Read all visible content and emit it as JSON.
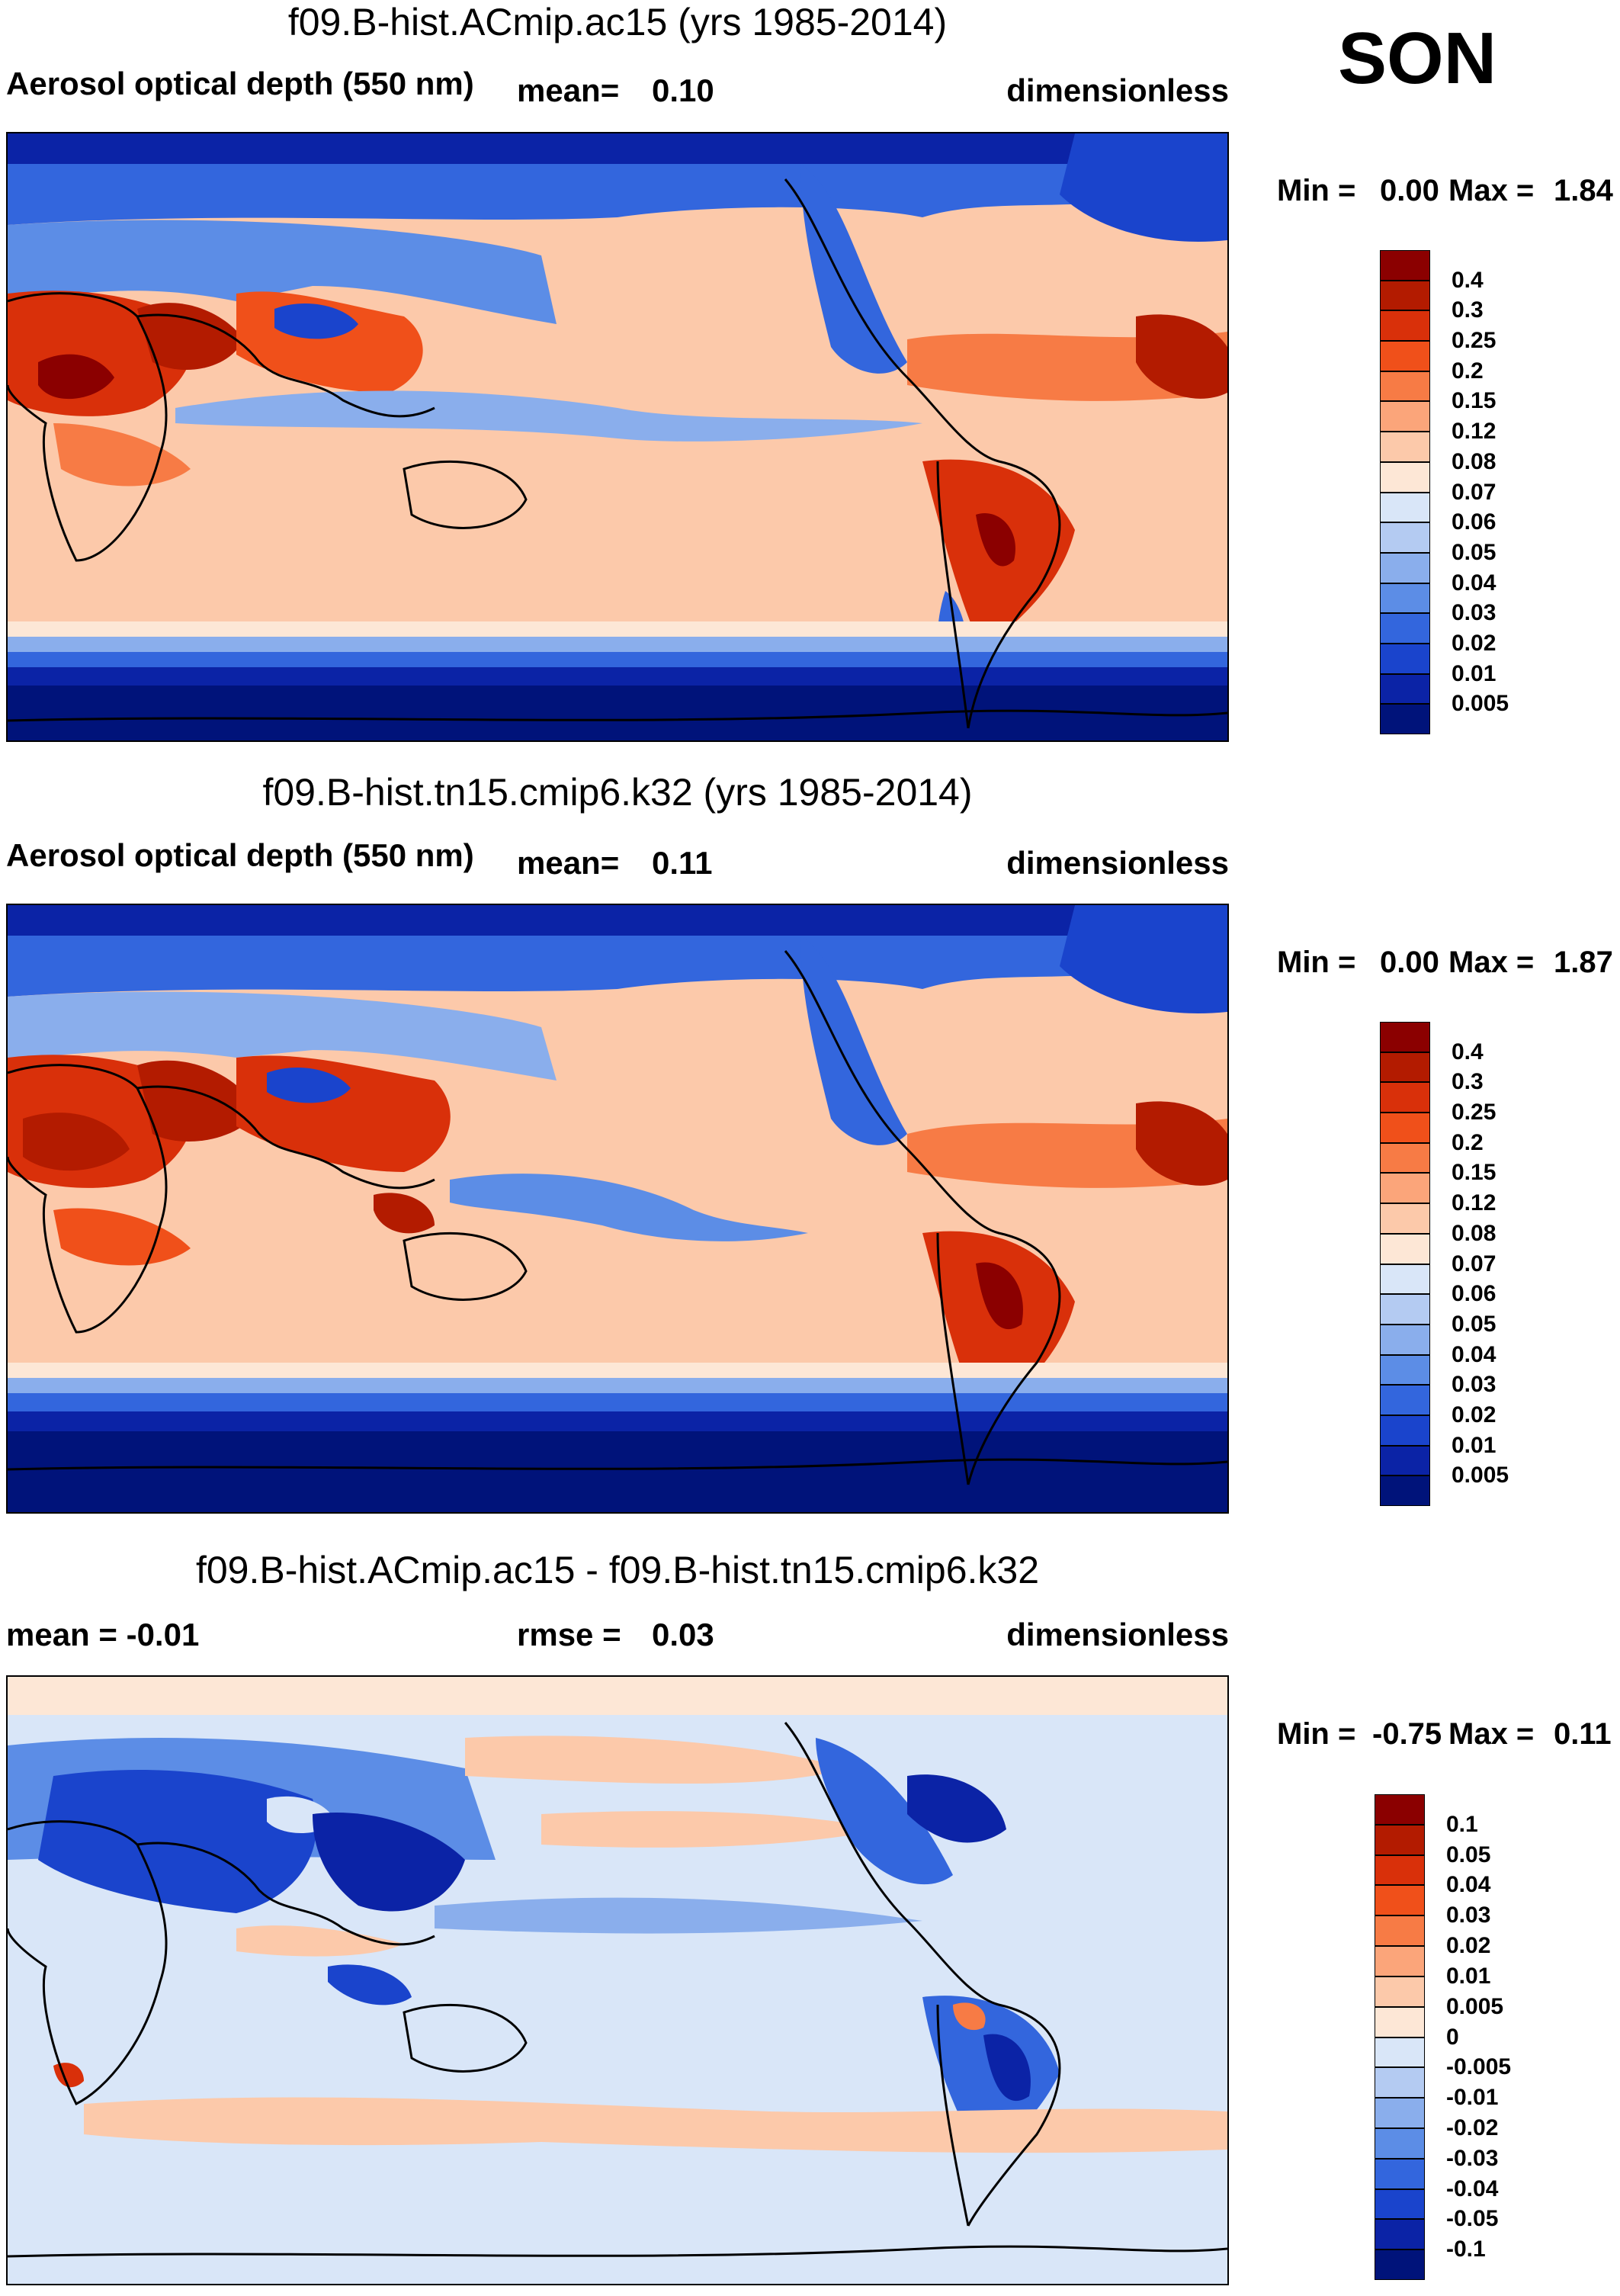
{
  "season": "SON",
  "panels": [
    {
      "title": "f09.B-hist.ACmip.ac15 (yrs 1985-2014)",
      "left_label": "Aerosol optical depth (550 nm)",
      "mean_label": "mean=",
      "mean_value": "0.10",
      "units": "dimensionless",
      "min_label": "Min =",
      "min_value": "0.00",
      "max_label": "Max =",
      "max_value": "1.84",
      "map_kind": "aod"
    },
    {
      "title": "f09.B-hist.tn15.cmip6.k32 (yrs 1985-2014)",
      "left_label": "Aerosol optical depth (550 nm)",
      "mean_label": "mean=",
      "mean_value": "0.11",
      "units": "dimensionless",
      "min_label": "Min =",
      "min_value": "0.00",
      "max_label": "Max =",
      "max_value": "1.87",
      "map_kind": "aod"
    },
    {
      "title": "f09.B-hist.ACmip.ac15 - f09.B-hist.tn15.cmip6.k32",
      "left_label": "mean =  -0.01",
      "mean_label": "rmse =",
      "mean_value": "0.03",
      "units": "dimensionless",
      "min_label": "Min =",
      "min_value": "-0.75",
      "max_label": "Max =",
      "max_value": "0.11",
      "map_kind": "diff"
    }
  ],
  "colorbars": {
    "aod": {
      "levels": [
        "0.4",
        "0.3",
        "0.25",
        "0.2",
        "0.15",
        "0.12",
        "0.08",
        "0.07",
        "0.06",
        "0.05",
        "0.04",
        "0.03",
        "0.02",
        "0.01",
        "0.005"
      ],
      "colors": [
        "#8b0000",
        "#b31b00",
        "#d9300a",
        "#f0501a",
        "#f77b45",
        "#fba57a",
        "#fcc9aa",
        "#fde7d6",
        "#d9e6f8",
        "#b4cbf2",
        "#8aaeec",
        "#5c8de6",
        "#3366dd",
        "#1a44cc",
        "#0b23a6",
        "#00137a"
      ]
    },
    "diff": {
      "levels": [
        "0.1",
        "0.05",
        "0.04",
        "0.03",
        "0.02",
        "0.01",
        "0.005",
        "0",
        "-0.005",
        "-0.01",
        "-0.02",
        "-0.03",
        "-0.04",
        "-0.05",
        "-0.1"
      ],
      "colors": [
        "#8b0000",
        "#b31b00",
        "#d9300a",
        "#f0501a",
        "#f77b45",
        "#fba57a",
        "#fcc9aa",
        "#fde7d6",
        "#d9e6f8",
        "#b4cbf2",
        "#8aaeec",
        "#5c8de6",
        "#3366dd",
        "#1a44cc",
        "#0b23a6",
        "#00137a"
      ]
    }
  },
  "chart_data": [
    {
      "type": "heatmap",
      "title": "f09.B-hist.ACmip.ac15 (yrs 1985-2014)",
      "variable": "Aerosol optical depth (550 nm)",
      "mean": 0.1,
      "units": "dimensionless",
      "min": 0.0,
      "max": 1.84,
      "colorbar_levels": [
        0.4,
        0.3,
        0.25,
        0.2,
        0.15,
        0.12,
        0.08,
        0.07,
        0.06,
        0.05,
        0.04,
        0.03,
        0.02,
        0.01,
        0.005
      ]
    },
    {
      "type": "heatmap",
      "title": "f09.B-hist.tn15.cmip6.k32 (yrs 1985-2014)",
      "variable": "Aerosol optical depth (550 nm)",
      "mean": 0.11,
      "units": "dimensionless",
      "min": 0.0,
      "max": 1.87,
      "colorbar_levels": [
        0.4,
        0.3,
        0.25,
        0.2,
        0.15,
        0.12,
        0.08,
        0.07,
        0.06,
        0.05,
        0.04,
        0.03,
        0.02,
        0.01,
        0.005
      ]
    },
    {
      "type": "heatmap",
      "title": "f09.B-hist.ACmip.ac15 - f09.B-hist.tn15.cmip6.k32",
      "mean": -0.01,
      "rmse": 0.03,
      "units": "dimensionless",
      "min": -0.75,
      "max": 0.11,
      "colorbar_levels": [
        0.1,
        0.05,
        0.04,
        0.03,
        0.02,
        0.01,
        0.005,
        0,
        -0.005,
        -0.01,
        -0.02,
        -0.03,
        -0.04,
        -0.05,
        -0.1
      ]
    }
  ]
}
